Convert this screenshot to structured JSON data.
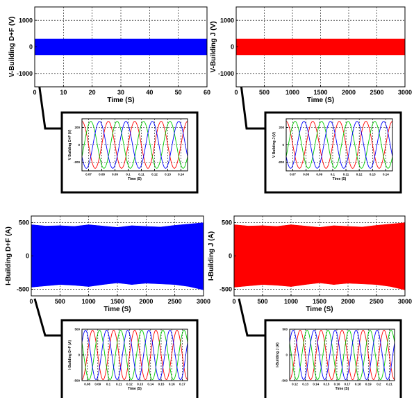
{
  "chart_data": [
    {
      "id": "main1",
      "type": "line",
      "ylabel": "V-Building D+F (V)",
      "xlabel": "Time (S)",
      "xlim": [
        0,
        60
      ],
      "ylim": [
        -1500,
        1500
      ],
      "xticks": [
        0,
        10,
        20,
        30,
        40,
        50,
        60
      ],
      "yticks": [
        -1000,
        0,
        1000
      ],
      "grid": true,
      "color": "#0000ff",
      "envelope": {
        "x": [
          0,
          60
        ],
        "upper": [
          300,
          300
        ],
        "lower": [
          -300,
          -300
        ]
      }
    },
    {
      "id": "main2",
      "type": "line",
      "ylabel": "V-Building J (V)",
      "xlabel": "Time (S)",
      "xlim": [
        0,
        3000
      ],
      "ylim": [
        -1500,
        1500
      ],
      "xticks": [
        0,
        500,
        1000,
        1500,
        2000,
        2500,
        3000
      ],
      "yticks": [
        -1000,
        0,
        1000
      ],
      "grid": true,
      "color": "#ff0000",
      "envelope": {
        "x": [
          0,
          3000
        ],
        "upper": [
          300,
          300
        ],
        "lower": [
          -300,
          -300
        ]
      }
    },
    {
      "id": "main3",
      "type": "line",
      "ylabel": "I-Building D+F (A)",
      "xlabel": "Time (S)",
      "xlim": [
        0,
        3000
      ],
      "ylim": [
        -600,
        600
      ],
      "xticks": [
        0,
        500,
        1000,
        1500,
        2000,
        2500,
        3000
      ],
      "yticks": [
        -500,
        0,
        500
      ],
      "grid": true,
      "color": "#0000ff",
      "envelope": {
        "x": [
          0,
          250,
          500,
          750,
          1000,
          1250,
          1500,
          1750,
          2000,
          2250,
          2500,
          2750,
          3000
        ],
        "upper": [
          470,
          450,
          455,
          445,
          470,
          450,
          430,
          455,
          445,
          435,
          460,
          480,
          500
        ],
        "lower": [
          -470,
          -450,
          -430,
          -440,
          -460,
          -430,
          -405,
          -430,
          -410,
          -420,
          -430,
          -460,
          -510
        ]
      }
    },
    {
      "id": "main4",
      "type": "line",
      "ylabel": "I-Building J (A)",
      "xlabel": "Time (S)",
      "xlim": [
        0,
        3000
      ],
      "ylim": [
        -600,
        600
      ],
      "xticks": [
        0,
        500,
        1000,
        1500,
        2000,
        2500,
        3000
      ],
      "yticks": [
        -500,
        0,
        500
      ],
      "grid": true,
      "color": "#ff0000",
      "envelope": {
        "x": [
          0,
          250,
          500,
          750,
          1000,
          1250,
          1500,
          1750,
          2000,
          2250,
          2500,
          2750,
          3000
        ],
        "upper": [
          470,
          450,
          455,
          445,
          470,
          450,
          430,
          455,
          445,
          435,
          460,
          480,
          500
        ],
        "lower": [
          -470,
          -450,
          -430,
          -440,
          -460,
          -430,
          -405,
          -430,
          -410,
          -420,
          -430,
          -460,
          -510
        ]
      }
    },
    {
      "id": "zoom1",
      "type": "line",
      "ylabel": "V Building D+F (V)",
      "xlabel": "Time (S)",
      "xlim": [
        0.065,
        0.145
      ],
      "ylim": [
        -300,
        300
      ],
      "xticks": [
        0.07,
        0.08,
        0.09,
        0.1,
        0.11,
        0.12,
        0.13,
        0.14
      ],
      "xticklabels": [
        "0.07",
        "0.08",
        "0.09",
        "0.1",
        "0.11",
        "0.12",
        "0.13",
        "0.14"
      ],
      "yticks": [
        -200,
        0,
        200
      ],
      "grid": true,
      "series": [
        {
          "color": "#ff0000",
          "amplitude": 270,
          "frequency": 50,
          "phase": 0
        },
        {
          "color": "#00cc00",
          "amplitude": 270,
          "frequency": 50,
          "phase": -2.094
        },
        {
          "color": "#0000ff",
          "amplitude": 270,
          "frequency": 50,
          "phase": 2.094
        }
      ]
    },
    {
      "id": "zoom2",
      "type": "line",
      "ylabel": "V Building J (V)",
      "xlabel": "Time (S)",
      "xlim": [
        0.065,
        0.145
      ],
      "ylim": [
        -300,
        300
      ],
      "xticks": [
        0.07,
        0.08,
        0.09,
        0.1,
        0.11,
        0.12,
        0.13,
        0.14
      ],
      "xticklabels": [
        "0.07",
        "0.08",
        "0.09",
        "0.1",
        "0.11",
        "0.12",
        "0.13",
        "0.14"
      ],
      "yticks": [
        -200,
        0,
        200
      ],
      "grid": true,
      "series": [
        {
          "color": "#ff0000",
          "amplitude": 270,
          "frequency": 50,
          "phase": 0
        },
        {
          "color": "#00cc00",
          "amplitude": 270,
          "frequency": 50,
          "phase": -2.094
        },
        {
          "color": "#0000ff",
          "amplitude": 270,
          "frequency": 50,
          "phase": 2.094
        }
      ]
    },
    {
      "id": "zoom3",
      "type": "line",
      "ylabel": "I-Building D+F (A)",
      "xlabel": "Time (S)",
      "xlim": [
        0.075,
        0.175
      ],
      "ylim": [
        -500,
        500
      ],
      "xticks": [
        0.08,
        0.09,
        0.1,
        0.11,
        0.12,
        0.13,
        0.14,
        0.15,
        0.16,
        0.17
      ],
      "xticklabels": [
        "0.08",
        "0.09",
        "0.1",
        "0.11",
        "0.12",
        "0.13",
        "0.14",
        "0.15",
        "0.16",
        "0.17"
      ],
      "yticks": [
        -500,
        0,
        500
      ],
      "grid": true,
      "series": [
        {
          "color": "#ff0000",
          "amplitude": 480,
          "frequency": 50,
          "phase": 0
        },
        {
          "color": "#00cc00",
          "amplitude": 480,
          "frequency": 50,
          "phase": -2.094
        },
        {
          "color": "#0000ff",
          "amplitude": 480,
          "frequency": 50,
          "phase": 2.094
        }
      ]
    },
    {
      "id": "zoom4",
      "type": "line",
      "ylabel": "I-Building J (A)",
      "xlabel": "Time (S)",
      "xlim": [
        0.115,
        0.215
      ],
      "ylim": [
        -500,
        500
      ],
      "xticks": [
        0.12,
        0.13,
        0.14,
        0.15,
        0.16,
        0.17,
        0.18,
        0.19,
        0.2,
        0.21
      ],
      "xticklabels": [
        "0.12",
        "0.13",
        "0.14",
        "0.15",
        "0.16",
        "0.17",
        "0.18",
        "0.19",
        "0.2",
        "0.21"
      ],
      "yticks": [
        -500,
        0,
        500
      ],
      "grid": true,
      "series": [
        {
          "color": "#ff0000",
          "amplitude": 480,
          "frequency": 50,
          "phase": 0
        },
        {
          "color": "#00cc00",
          "amplitude": 480,
          "frequency": 50,
          "phase": -2.094
        },
        {
          "color": "#0000ff",
          "amplitude": 480,
          "frequency": 50,
          "phase": 2.094
        }
      ]
    }
  ]
}
